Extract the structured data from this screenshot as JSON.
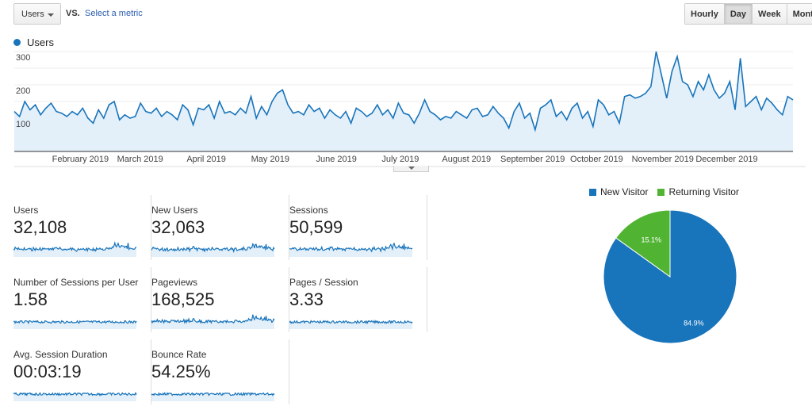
{
  "toolbar": {
    "metric": "Users",
    "vs": "VS.",
    "select_metric": "Select a metric",
    "periods": [
      "Hourly",
      "Day",
      "Week",
      "Month"
    ],
    "active_period": "Day"
  },
  "chart_data": {
    "type": "area",
    "title": "",
    "legend": [
      "Users"
    ],
    "legend_placement": "top-left",
    "ylabel": "",
    "ylim": [
      0,
      300
    ],
    "yticks": [
      100,
      200,
      300
    ],
    "xticks": [
      "February 2019",
      "March 2019",
      "April 2019",
      "May 2019",
      "June 2019",
      "July 2019",
      "August 2019",
      "September 2019",
      "October 2019",
      "November 2019",
      "December 2019"
    ],
    "x_unit": "day of 2019 (every 3 days)",
    "values": [
      120,
      105,
      150,
      125,
      140,
      110,
      130,
      145,
      120,
      115,
      105,
      120,
      110,
      130,
      100,
      85,
      125,
      100,
      140,
      150,
      95,
      110,
      100,
      105,
      145,
      120,
      115,
      130,
      105,
      120,
      110,
      95,
      140,
      125,
      80,
      130,
      125,
      140,
      100,
      150,
      115,
      120,
      110,
      130,
      115,
      165,
      100,
      135,
      110,
      150,
      175,
      185,
      140,
      115,
      120,
      110,
      140,
      120,
      130,
      100,
      125,
      110,
      100,
      120,
      85,
      130,
      120,
      105,
      115,
      140,
      110,
      125,
      100,
      145,
      115,
      110,
      85,
      115,
      155,
      120,
      110,
      95,
      105,
      100,
      120,
      110,
      100,
      125,
      130,
      105,
      110,
      135,
      115,
      100,
      70,
      120,
      145,
      100,
      115,
      65,
      130,
      140,
      155,
      105,
      120,
      95,
      130,
      145,
      100,
      120,
      75,
      155,
      140,
      110,
      120,
      85,
      165,
      170,
      160,
      165,
      175,
      195,
      300,
      230,
      160,
      240,
      285,
      210,
      200,
      165,
      210,
      185,
      230,
      185,
      160,
      175,
      210,
      125,
      280,
      135,
      150,
      165,
      125,
      160,
      145,
      125,
      110,
      165,
      155
    ]
  },
  "pie_data": {
    "type": "pie",
    "legend": [
      "New Visitor",
      "Returning Visitor"
    ],
    "values": [
      84.9,
      15.1
    ],
    "labels": [
      "84.9%",
      "15.1%"
    ],
    "colors": [
      "#1874bb",
      "#50b432"
    ]
  },
  "metrics": [
    {
      "label": "Users",
      "value": "32,108"
    },
    {
      "label": "New Users",
      "value": "32,063"
    },
    {
      "label": "Sessions",
      "value": "50,599"
    },
    {
      "label": "Number of Sessions per User",
      "value": "1.58"
    },
    {
      "label": "Pageviews",
      "value": "168,525"
    },
    {
      "label": "Pages / Session",
      "value": "3.33"
    },
    {
      "label": "Avg. Session Duration",
      "value": "00:03:19"
    },
    {
      "label": "Bounce Rate",
      "value": "54.25%"
    }
  ],
  "colors": {
    "accent": "#1874bb",
    "fill": "#e3eff9"
  }
}
